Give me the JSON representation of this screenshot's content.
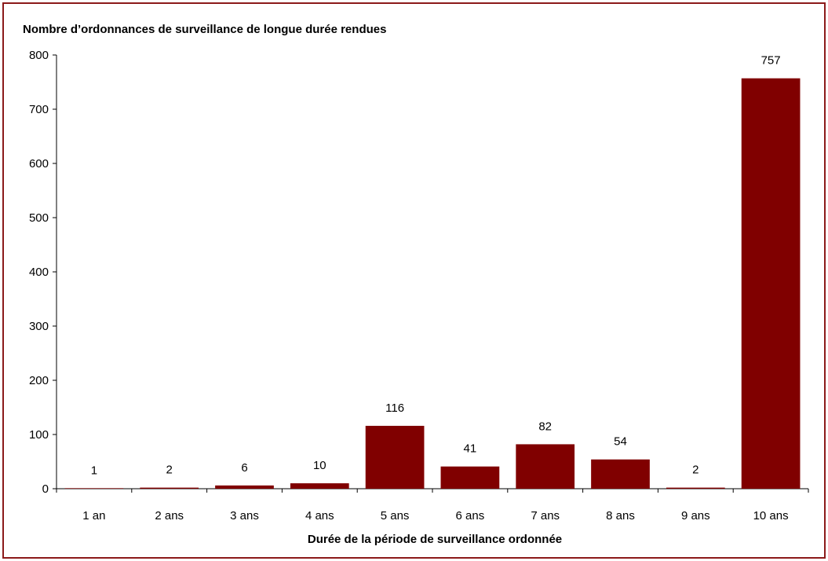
{
  "chart_data": {
    "type": "bar",
    "title": "Nombre d’ordonnances de surveillance de longue durée rendues",
    "xlabel": "Durée de la période de surveillance ordonnée",
    "ylabel": "",
    "categories": [
      "1 an",
      "2 ans",
      "3 ans",
      "4 ans",
      "5 ans",
      "6 ans",
      "7 ans",
      "8 ans",
      "9 ans",
      "10 ans"
    ],
    "values": [
      1,
      2,
      6,
      10,
      116,
      41,
      82,
      54,
      2,
      757
    ],
    "ylim": [
      0,
      800
    ],
    "yticks": [
      0,
      100,
      200,
      300,
      400,
      500,
      600,
      700,
      800
    ],
    "data_labels": true,
    "grid": false,
    "legend": "none",
    "bar_color": "#800000",
    "frame_color": "#8b1a1a"
  }
}
